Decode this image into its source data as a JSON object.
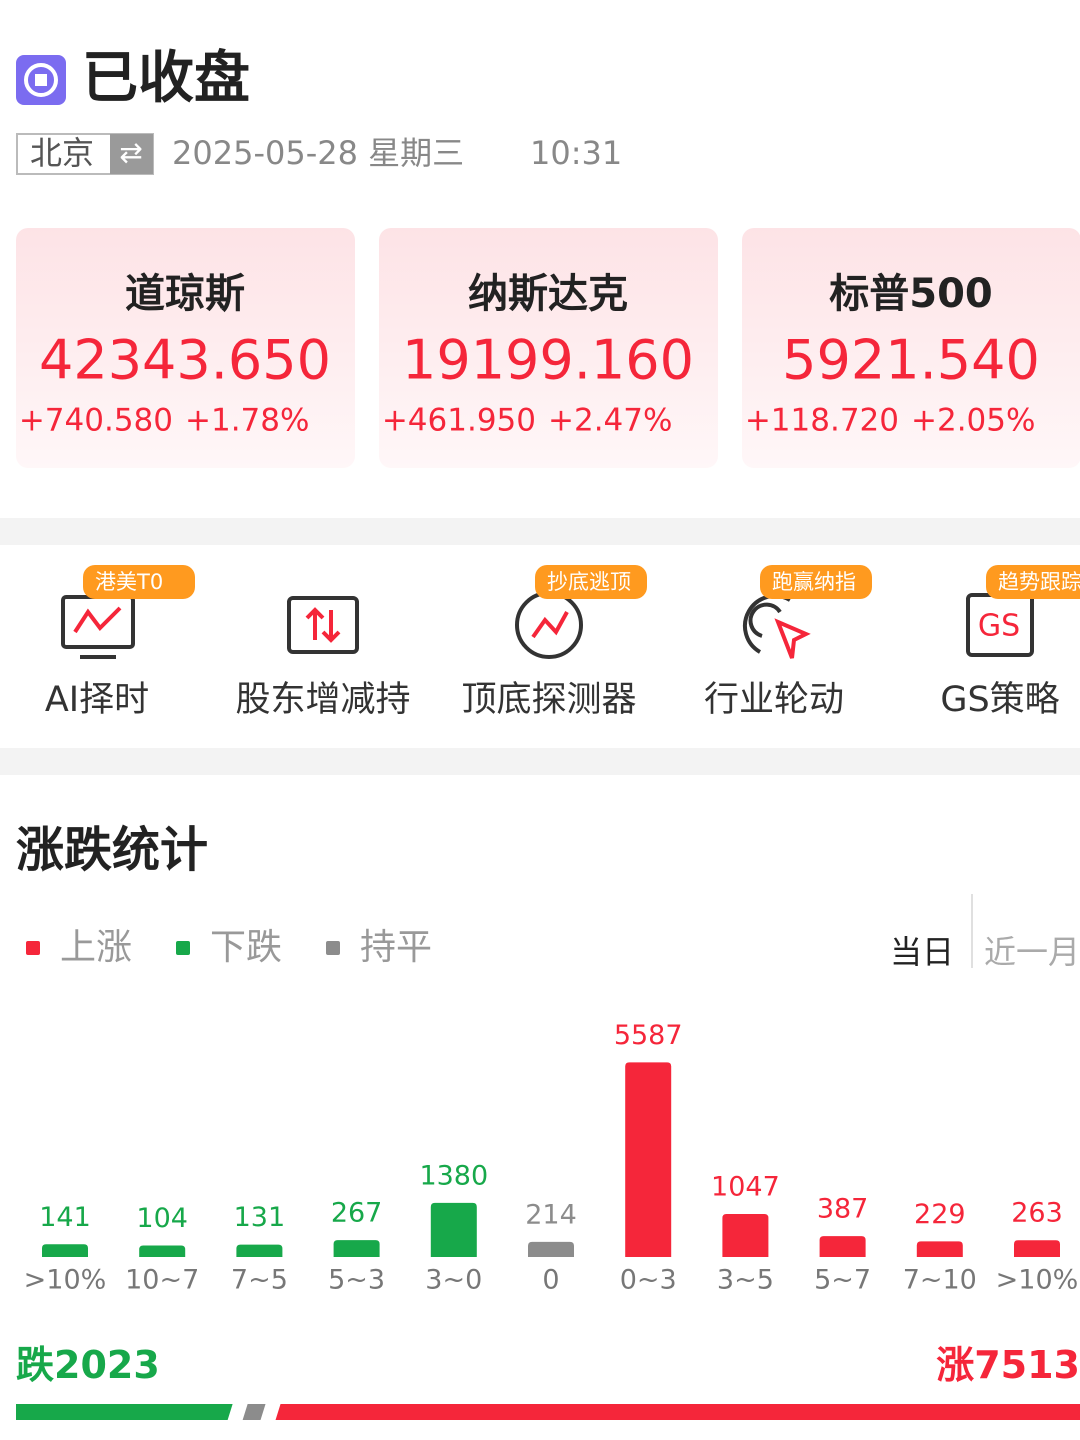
{
  "header": {
    "status": "已收盘",
    "city": "北京",
    "date": "2025-05-28 星期三",
    "time": "10:31"
  },
  "indices": [
    {
      "name": "道琼斯",
      "price": "42343.650",
      "change": "+740.580",
      "pct": "+1.78%"
    },
    {
      "name": "纳斯达克",
      "price": "19199.160",
      "change": "+461.950",
      "pct": "+2.47%"
    },
    {
      "name": "标普500",
      "price": "5921.540",
      "change": "+118.720",
      "pct": "+2.05%"
    }
  ],
  "tools": [
    {
      "label": "AI择时",
      "badge": "港美T0"
    },
    {
      "label": "股东增减持"
    },
    {
      "label": "顶底探测器",
      "badge": "抄底逃顶"
    },
    {
      "label": "行业轮动",
      "badge": "跑赢纳指"
    },
    {
      "label": "GS策略",
      "badge": "趋势跟踪"
    }
  ],
  "periods": [
    "当日",
    "近一月"
  ],
  "chart_data": {
    "type": "bar",
    "title": "涨跌统计",
    "categories": [
      ">10%",
      "10~7",
      "7~5",
      "5~3",
      "3~0",
      "0",
      "0~3",
      "3~5",
      "5~7",
      "7~10",
      ">10%"
    ],
    "series": [
      {
        "name": "上涨",
        "color": "#f5263a",
        "values": [
          null,
          null,
          null,
          null,
          null,
          null,
          5587,
          1047,
          387,
          229,
          263
        ]
      },
      {
        "name": "下跌",
        "color": "#17a84a",
        "values": [
          141,
          104,
          131,
          267,
          1380,
          null,
          null,
          null,
          null,
          null,
          null
        ]
      },
      {
        "name": "持平",
        "color": "#8c8c8c",
        "values": [
          null,
          null,
          null,
          null,
          null,
          214,
          null,
          null,
          null,
          null,
          null
        ]
      }
    ],
    "ylim": [
      0,
      5600
    ]
  },
  "summary": {
    "down_label": "跌",
    "down": 2023,
    "up_label": "涨",
    "up": 7513
  }
}
